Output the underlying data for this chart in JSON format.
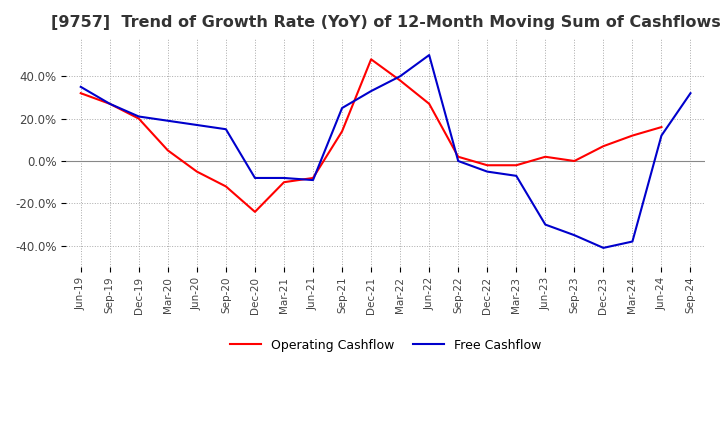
{
  "title": "[9757]  Trend of Growth Rate (YoY) of 12-Month Moving Sum of Cashflows",
  "title_fontsize": 11.5,
  "ylim": [
    -0.5,
    0.58
  ],
  "yticks": [
    -0.4,
    -0.2,
    0.0,
    0.2,
    0.4
  ],
  "ytick_labels": [
    "-40.0%",
    "-20.0%",
    "0.0%",
    "20.0%",
    "40.0%"
  ],
  "background_color": "#ffffff",
  "grid_color": "#aaaaaa",
  "operating_color": "#ff0000",
  "free_color": "#0000cc",
  "x_labels": [
    "Jun-19",
    "Sep-19",
    "Dec-19",
    "Mar-20",
    "Jun-20",
    "Sep-20",
    "Dec-20",
    "Mar-21",
    "Jun-21",
    "Sep-21",
    "Dec-21",
    "Mar-22",
    "Jun-22",
    "Sep-22",
    "Dec-22",
    "Mar-23",
    "Jun-23",
    "Sep-23",
    "Dec-23",
    "Mar-24",
    "Jun-24",
    "Sep-24"
  ],
  "operating_cashflow": [
    0.32,
    0.27,
    0.2,
    0.05,
    -0.05,
    -0.12,
    -0.24,
    -0.1,
    -0.08,
    0.14,
    0.48,
    0.38,
    0.27,
    0.02,
    -0.02,
    -0.02,
    0.02,
    0.0,
    0.07,
    0.12,
    0.16,
    null
  ],
  "free_cashflow": [
    0.35,
    0.27,
    0.21,
    0.19,
    0.17,
    0.15,
    -0.08,
    -0.08,
    -0.09,
    0.25,
    0.33,
    0.4,
    0.5,
    0.0,
    -0.05,
    -0.07,
    -0.3,
    -0.35,
    -0.41,
    -0.38,
    0.12,
    0.32
  ]
}
